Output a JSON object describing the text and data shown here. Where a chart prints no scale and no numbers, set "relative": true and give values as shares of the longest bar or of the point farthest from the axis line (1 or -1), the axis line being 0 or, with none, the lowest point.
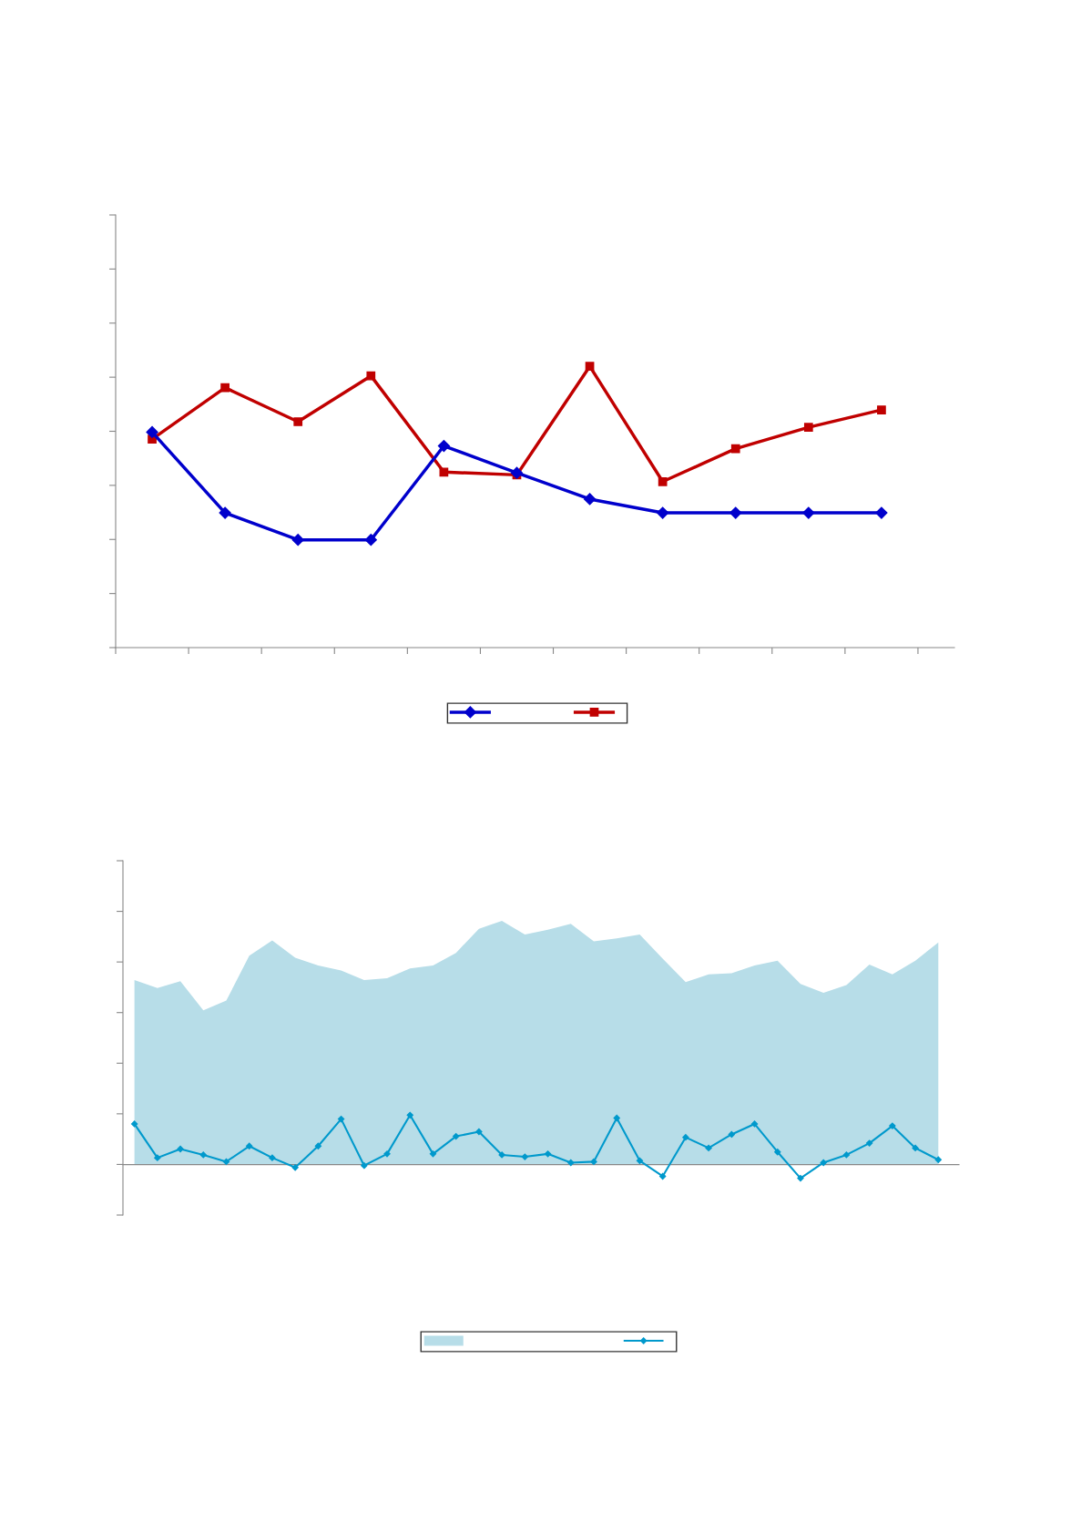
{
  "chart_data": [
    {
      "type": "line",
      "relative": true,
      "categories": [
        null,
        null,
        null,
        null,
        null,
        null,
        null,
        null,
        null,
        null,
        null
      ],
      "grid": false,
      "series": [
        {
          "color": "#0000cc",
          "marker": "diamond",
          "values": [
            0.766,
            0.479,
            0.383,
            0.383,
            0.717,
            0.621,
            0.528,
            0.479,
            0.479,
            0.479,
            0.479
          ]
        },
        {
          "color": "#c00000",
          "marker": "square",
          "values": [
            0.741,
            0.924,
            0.803,
            0.966,
            0.624,
            0.614,
            1.0,
            0.59,
            0.707,
            0.783,
            0.845
          ]
        }
      ]
    },
    {
      "type": "area",
      "relative": true,
      "categories": [
        null,
        null,
        null,
        null,
        null,
        null,
        null,
        null,
        null,
        null,
        null,
        null,
        null,
        null,
        null,
        null,
        null,
        null,
        null,
        null,
        null,
        null,
        null,
        null,
        null,
        null,
        null,
        null,
        null,
        null,
        null,
        null,
        null,
        null,
        null,
        null
      ],
      "grid": false,
      "series": [
        {
          "type": "area",
          "color": "#b7dde8",
          "values": [
            0.757,
            0.725,
            0.753,
            0.633,
            0.673,
            0.857,
            0.92,
            0.849,
            0.817,
            0.797,
            0.757,
            0.765,
            0.805,
            0.817,
            0.869,
            0.968,
            1.0,
            0.944,
            0.964,
            0.988,
            0.916,
            0.928,
            0.944,
            0.845,
            0.749,
            0.781,
            0.785,
            0.817,
            0.837,
            0.741,
            0.705,
            0.737,
            0.821,
            0.781,
            0.837,
            0.912
          ]
        },
        {
          "type": "line",
          "color": "#0099cc",
          "marker": "diamond",
          "values": [
            0.167,
            0.028,
            0.064,
            0.04,
            0.012,
            0.076,
            0.028,
            -0.012,
            0.076,
            0.187,
            -0.004,
            0.044,
            0.203,
            0.044,
            0.116,
            0.135,
            0.04,
            0.032,
            0.044,
            0.008,
            0.012,
            0.191,
            0.016,
            -0.048,
            0.112,
            0.068,
            0.124,
            0.167,
            0.052,
            -0.056,
            0.008,
            0.04,
            0.088,
            0.159,
            0.068,
            0.02
          ]
        }
      ]
    }
  ]
}
